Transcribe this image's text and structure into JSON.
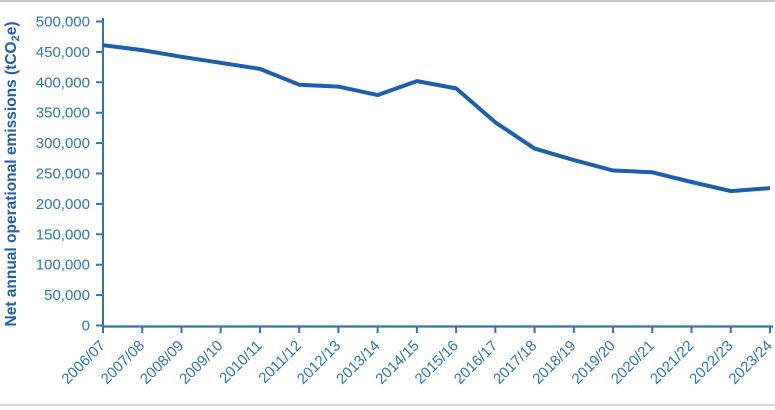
{
  "page": {
    "background": "#ffffff",
    "top_divider_color": "#cbcbcb",
    "bottom_divider_color": "#d9d9d9"
  },
  "chart_data": {
    "type": "line",
    "title": "",
    "xlabel": "",
    "ylabel": "Net annual operational emissions (tCO2e)",
    "ylabel_parts": {
      "main": "Net annual operational emissions (tCO",
      "sub": "2",
      "end": "e)"
    },
    "categories": [
      "2006/07",
      "2007/08",
      "2008/09",
      "2009/10",
      "2010/11",
      "2011/12",
      "2012/13",
      "2013/14",
      "2014/15",
      "2015/16",
      "2016/17",
      "2017/18",
      "2018/19",
      "2019/20",
      "2020/21",
      "2021/22",
      "2022/23",
      "2023/24"
    ],
    "series": [
      {
        "name": "Net annual operational emissions",
        "values": [
          461000,
          453000,
          442000,
          432000,
          422000,
          396000,
          393000,
          379000,
          402000,
          390000,
          334000,
          291000,
          272000,
          255000,
          252000,
          236000,
          221000,
          226000
        ]
      }
    ],
    "ylim": [
      0,
      500000
    ],
    "ytick_step": 50000,
    "ytick_labels": [
      "0",
      "50,000",
      "100,000",
      "150,000",
      "200,000",
      "250,000",
      "300,000",
      "350,000",
      "400,000",
      "450,000",
      "500,000"
    ],
    "grid": "off",
    "legend": "none",
    "colors": {
      "line": "#1b5fae",
      "axis": "#2e75b6",
      "tick_label": "#2e75b6",
      "axis_title": "#1f5fa8"
    }
  }
}
